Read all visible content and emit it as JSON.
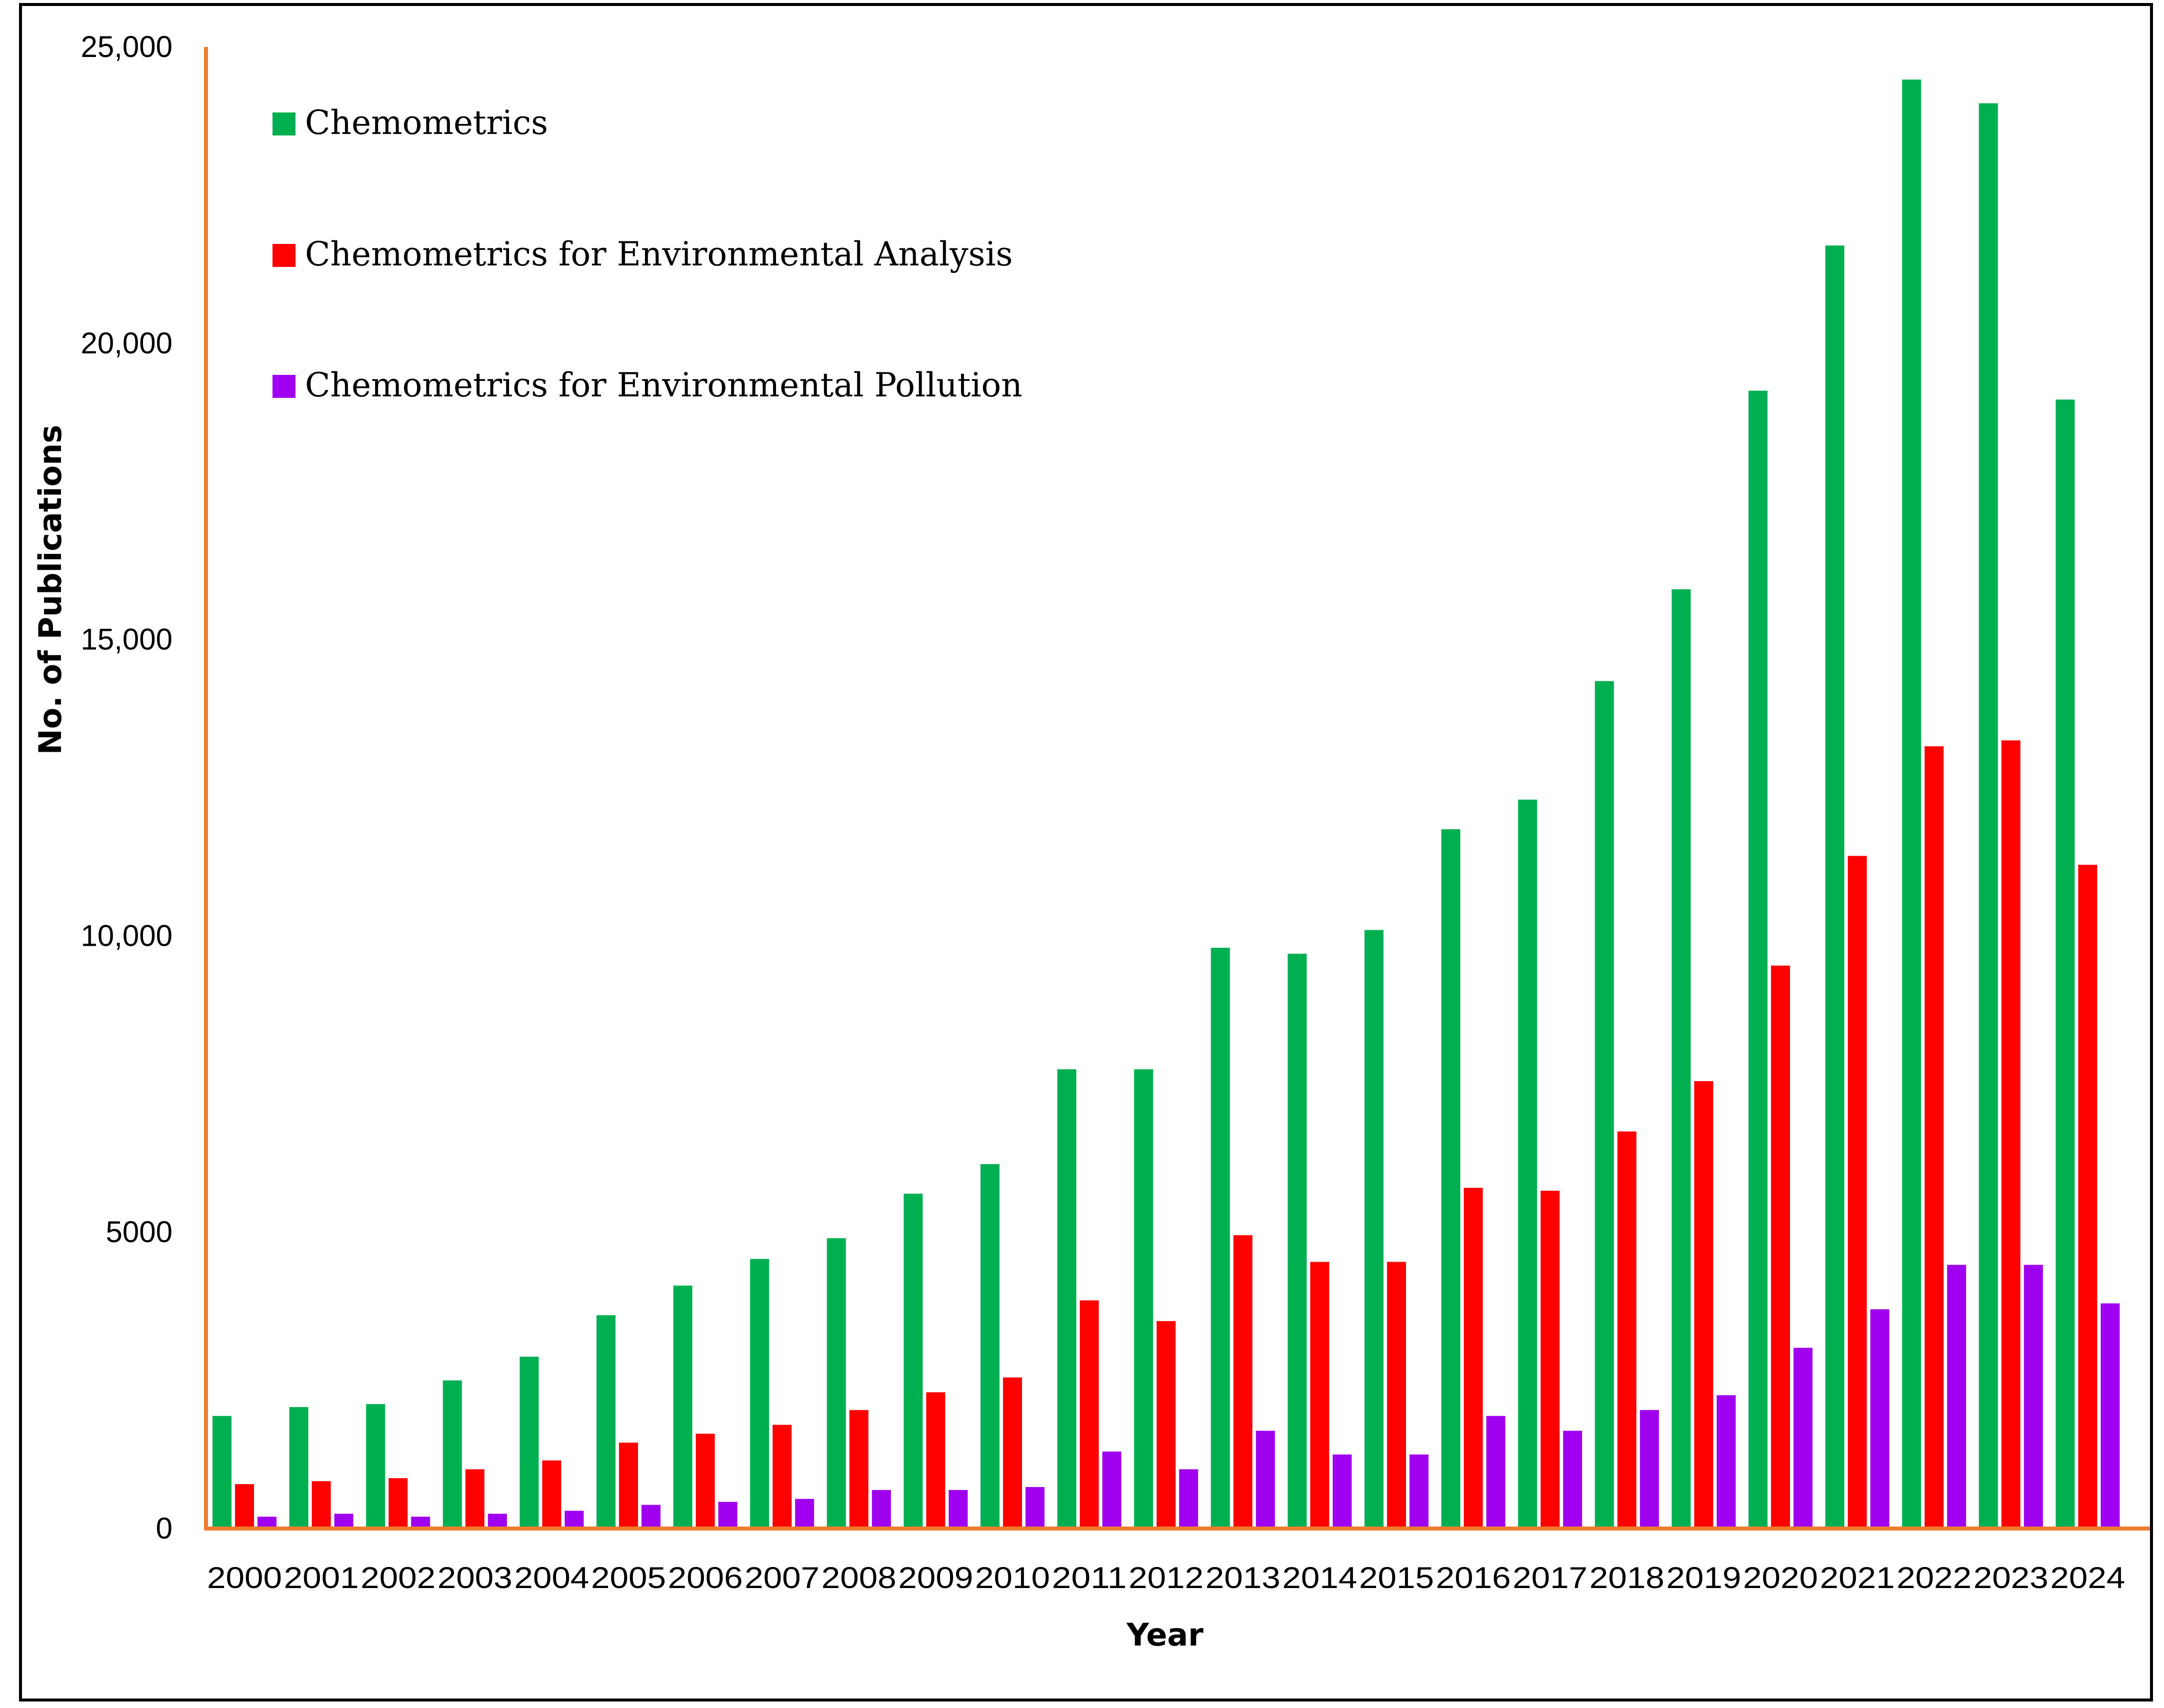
{
  "chart_data": {
    "type": "bar",
    "title": "",
    "xlabel": "Year",
    "ylabel": "No. of Publications",
    "ylim": [
      0,
      25000
    ],
    "yticks": [
      0,
      5000,
      10000,
      15000,
      20000,
      25000
    ],
    "ytick_labels": [
      "0",
      "5000",
      "10,000",
      "15,000",
      "20,000",
      "25,000"
    ],
    "grid": false,
    "legend_position": "top-left",
    "categories": [
      "2000",
      "2001",
      "2002",
      "2003",
      "2004",
      "2005",
      "2006",
      "2007",
      "2008",
      "2009",
      "2010",
      "2011",
      "2012",
      "2013",
      "2014",
      "2015",
      "2016",
      "2017",
      "2018",
      "2019",
      "2020",
      "2021",
      "2022",
      "2023",
      "2024"
    ],
    "series": [
      {
        "name": "Chemometrics",
        "color": "#00b050",
        "values": [
          1900,
          2050,
          2100,
          2500,
          2900,
          3600,
          4100,
          4550,
          4900,
          5650,
          6150,
          7750,
          7750,
          9800,
          9700,
          10100,
          11800,
          12300,
          14300,
          15850,
          19200,
          21650,
          24450,
          24050,
          19050
        ]
      },
      {
        "name": "Chemometrics for Environmental Analysis",
        "color": "#ff0000",
        "values": [
          750,
          800,
          850,
          1000,
          1150,
          1450,
          1600,
          1750,
          2000,
          2300,
          2550,
          3850,
          3500,
          4950,
          4500,
          4500,
          5750,
          5700,
          6700,
          7550,
          9500,
          11350,
          13200,
          13300,
          11200
        ]
      },
      {
        "name": "Chemometrics for Environmental Pollution",
        "color": "#a000f0",
        "values": [
          200,
          250,
          200,
          250,
          300,
          400,
          450,
          500,
          650,
          650,
          700,
          1300,
          1000,
          1650,
          1250,
          1250,
          1900,
          1650,
          2000,
          2250,
          3050,
          3700,
          4450,
          4450,
          3800
        ]
      }
    ]
  },
  "style": {
    "axis_color": "#ed7d31",
    "frame_color": "#000000"
  }
}
